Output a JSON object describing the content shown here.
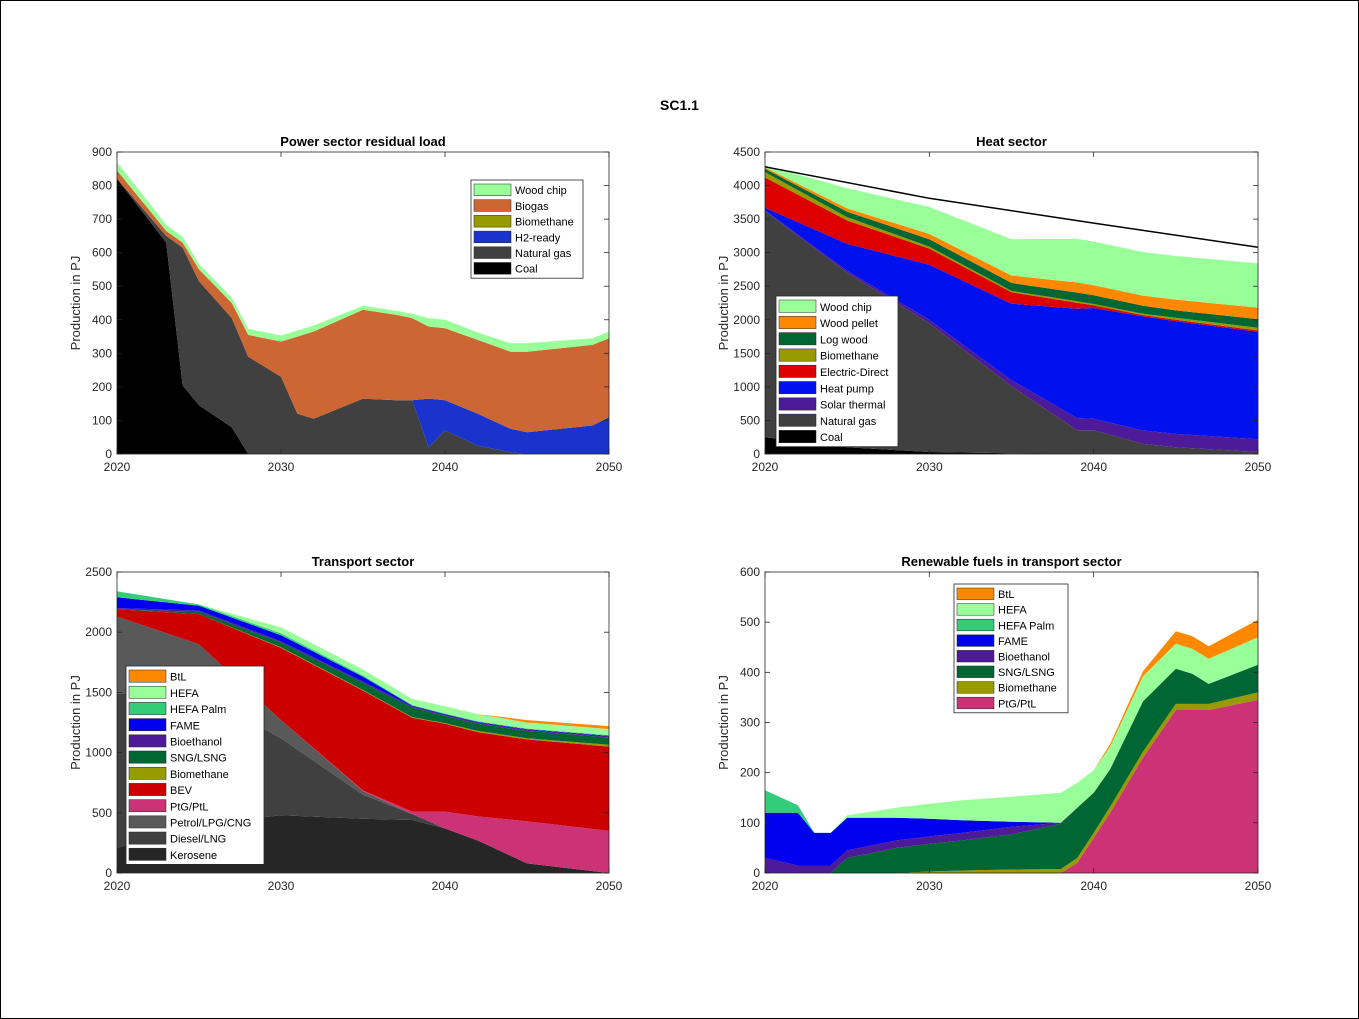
{
  "figure_title": "SC1.1",
  "chart_data": [
    {
      "type": "area",
      "title": "Power sector residual load",
      "xlabel": "",
      "ylabel": "Production in PJ",
      "xlim": [
        2020,
        2050
      ],
      "ylim": [
        0,
        900
      ],
      "xticks": [
        2020,
        2030,
        2040,
        2050
      ],
      "yticks": [
        0,
        100,
        200,
        300,
        400,
        500,
        600,
        700,
        800,
        900
      ],
      "grid": false,
      "legend_position": "top-right",
      "x": [
        2020,
        2023,
        2024,
        2025,
        2027,
        2028,
        2030,
        2031,
        2032,
        2035,
        2037,
        2038,
        2039,
        2040,
        2042,
        2044,
        2045,
        2049,
        2050
      ],
      "series": [
        {
          "name": "Coal",
          "color": "#000000",
          "values": [
            820,
            630,
            205,
            145,
            80,
            0,
            0,
            0,
            0,
            0,
            0,
            0,
            0,
            0,
            0,
            0,
            0,
            0,
            0
          ]
        },
        {
          "name": "Natural gas",
          "color": "#404040",
          "values": [
            0,
            20,
            410,
            370,
            325,
            290,
            230,
            120,
            105,
            165,
            160,
            160,
            20,
            70,
            25,
            5,
            0,
            0,
            0
          ]
        },
        {
          "name": "H2-ready",
          "color": "#1a33cc",
          "values": [
            0,
            0,
            0,
            0,
            0,
            0,
            0,
            0,
            0,
            0,
            0,
            0,
            145,
            90,
            95,
            70,
            65,
            85,
            110
          ]
        },
        {
          "name": "Biomethane",
          "color": "#999900",
          "values": [
            0,
            0,
            0,
            0,
            0,
            0,
            0,
            0,
            0,
            0,
            0,
            0,
            0,
            0,
            0,
            0,
            0,
            0,
            0
          ]
        },
        {
          "name": "Biogas",
          "color": "#cc6633",
          "values": [
            25,
            15,
            15,
            35,
            45,
            65,
            105,
            230,
            260,
            265,
            255,
            245,
            215,
            215,
            220,
            230,
            240,
            240,
            235
          ]
        },
        {
          "name": "Wood chip",
          "color": "#99ff99",
          "values": [
            25,
            18,
            17,
            16,
            16,
            18,
            18,
            18,
            18,
            12,
            12,
            13,
            25,
            25,
            22,
            25,
            25,
            20,
            20
          ]
        }
      ]
    },
    {
      "type": "area",
      "title": "Heat sector",
      "xlabel": "",
      "ylabel": "Production in PJ",
      "xlim": [
        2020,
        2050
      ],
      "ylim": [
        0,
        4500
      ],
      "xticks": [
        2020,
        2030,
        2040,
        2050
      ],
      "yticks": [
        0,
        500,
        1000,
        1500,
        2000,
        2500,
        3000,
        3500,
        4000,
        4500
      ],
      "grid": false,
      "legend_position": "bottom-left",
      "total_line": {
        "color": "#000000",
        "x": [
          2020,
          2030,
          2040,
          2050
        ],
        "values": [
          4280,
          3810,
          3440,
          3080
        ]
      },
      "x": [
        2020,
        2025,
        2030,
        2035,
        2039,
        2040,
        2043,
        2045,
        2050
      ],
      "series": [
        {
          "name": "Coal",
          "color": "#000000",
          "values": [
            250,
            100,
            30,
            10,
            5,
            5,
            0,
            0,
            0
          ]
        },
        {
          "name": "Natural gas",
          "color": "#404040",
          "values": [
            3370,
            2600,
            1920,
            1000,
            350,
            350,
            150,
            100,
            30
          ]
        },
        {
          "name": "Solar thermal",
          "color": "#4d1a99",
          "values": [
            10,
            30,
            50,
            90,
            180,
            170,
            200,
            200,
            190
          ]
        },
        {
          "name": "Heat pump",
          "color": "#0011ee",
          "values": [
            40,
            400,
            820,
            1140,
            1630,
            1650,
            1700,
            1680,
            1600
          ]
        },
        {
          "name": "Electric-Direct",
          "color": "#dd0000",
          "values": [
            450,
            350,
            240,
            170,
            90,
            40,
            20,
            20,
            20
          ]
        },
        {
          "name": "Biomethane",
          "color": "#999900",
          "values": [
            80,
            50,
            30,
            20,
            20,
            20,
            20,
            30,
            40
          ]
        },
        {
          "name": "Log wood",
          "color": "#006633",
          "values": [
            50,
            80,
            110,
            120,
            130,
            130,
            120,
            110,
            130
          ]
        },
        {
          "name": "Wood pellet",
          "color": "#ff8800",
          "values": [
            20,
            50,
            80,
            110,
            150,
            150,
            150,
            160,
            170
          ]
        },
        {
          "name": "Wood chip",
          "color": "#99ff99",
          "values": [
            30,
            300,
            400,
            540,
            650,
            650,
            650,
            650,
            660
          ]
        }
      ]
    },
    {
      "type": "area",
      "title": "Transport sector",
      "xlabel": "",
      "ylabel": "Production in PJ",
      "xlim": [
        2020,
        2050
      ],
      "ylim": [
        0,
        2500
      ],
      "xticks": [
        2020,
        2030,
        2040,
        2050
      ],
      "yticks": [
        0,
        500,
        1000,
        1500,
        2000,
        2500
      ],
      "grid": false,
      "legend_position": "bottom-left",
      "x": [
        2020,
        2025,
        2030,
        2035,
        2038,
        2040,
        2042,
        2045,
        2050
      ],
      "series": [
        {
          "name": "Kerosene",
          "color": "#262626",
          "values": [
            210,
            400,
            480,
            450,
            440,
            370,
            270,
            80,
            0
          ]
        },
        {
          "name": "Diesel/LNG",
          "color": "#404040",
          "values": [
            1280,
            1100,
            640,
            200,
            50,
            0,
            0,
            0,
            0
          ]
        },
        {
          "name": "Petrol/LPG/CNG",
          "color": "#595959",
          "values": [
            640,
            400,
            150,
            30,
            0,
            0,
            0,
            0,
            0
          ]
        },
        {
          "name": "PtG/PtL",
          "color": "#cc3377",
          "values": [
            0,
            0,
            0,
            5,
            20,
            140,
            200,
            350,
            350
          ]
        },
        {
          "name": "BEV",
          "color": "#cc0000",
          "values": [
            60,
            250,
            600,
            830,
            780,
            730,
            700,
            680,
            700
          ]
        },
        {
          "name": "Biomethane",
          "color": "#999900",
          "values": [
            0,
            0,
            5,
            5,
            5,
            5,
            10,
            10,
            15
          ]
        },
        {
          "name": "SNG/LSNG",
          "color": "#006633",
          "values": [
            0,
            20,
            40,
            60,
            80,
            60,
            60,
            60,
            60
          ]
        },
        {
          "name": "Bioethanol",
          "color": "#4d1a99",
          "values": [
            10,
            10,
            10,
            10,
            10,
            10,
            10,
            10,
            10
          ]
        },
        {
          "name": "FAME",
          "color": "#0000ee",
          "values": [
            90,
            40,
            50,
            40,
            5,
            5,
            5,
            5,
            5
          ]
        },
        {
          "name": "HEFA Palm",
          "color": "#33cc77",
          "values": [
            50,
            10,
            15,
            10,
            5,
            5,
            5,
            5,
            5
          ]
        },
        {
          "name": "HEFA",
          "color": "#99ff99",
          "values": [
            0,
            0,
            50,
            50,
            50,
            60,
            60,
            50,
            50
          ]
        },
        {
          "name": "BtL",
          "color": "#ff8800",
          "values": [
            0,
            0,
            0,
            0,
            0,
            0,
            0,
            20,
            25
          ]
        }
      ]
    },
    {
      "type": "area",
      "title": "Renewable fuels in transport sector",
      "xlabel": "",
      "ylabel": "Production in PJ",
      "xlim": [
        2020,
        2050
      ],
      "ylim": [
        0,
        600
      ],
      "xticks": [
        2020,
        2030,
        2040,
        2050
      ],
      "yticks": [
        0,
        100,
        200,
        300,
        400,
        500,
        600
      ],
      "grid": false,
      "legend_position": "top-center",
      "x": [
        2020,
        2022,
        2023,
        2024,
        2025,
        2028,
        2030,
        2032,
        2035,
        2038,
        2039,
        2040,
        2041,
        2043,
        2045,
        2046,
        2047,
        2050
      ],
      "series": [
        {
          "name": "PtG/PtL",
          "color": "#cc3377",
          "values": [
            0,
            0,
            0,
            0,
            0,
            0,
            0,
            0,
            0,
            0,
            20,
            70,
            120,
            230,
            325,
            325,
            325,
            345
          ]
        },
        {
          "name": "Biomethane",
          "color": "#999900",
          "values": [
            0,
            0,
            0,
            0,
            0,
            0,
            3,
            5,
            7,
            8,
            10,
            10,
            12,
            12,
            12,
            12,
            12,
            15
          ]
        },
        {
          "name": "SNG/LSNG",
          "color": "#006633",
          "values": [
            0,
            0,
            0,
            0,
            30,
            50,
            55,
            60,
            70,
            90,
            100,
            80,
            75,
            100,
            70,
            60,
            40,
            55
          ]
        },
        {
          "name": "Bioethanol",
          "color": "#4d1a99",
          "values": [
            30,
            15,
            15,
            15,
            15,
            15,
            15,
            15,
            15,
            2,
            0,
            0,
            0,
            0,
            0,
            0,
            0,
            0
          ]
        },
        {
          "name": "FAME",
          "color": "#0000ee",
          "values": [
            90,
            105,
            65,
            65,
            65,
            45,
            35,
            25,
            10,
            0,
            0,
            0,
            0,
            0,
            0,
            0,
            0,
            0
          ]
        },
        {
          "name": "HEFA Palm",
          "color": "#33cc77",
          "values": [
            45,
            15,
            0,
            0,
            0,
            0,
            0,
            0,
            0,
            0,
            0,
            0,
            0,
            0,
            0,
            0,
            0,
            0
          ]
        },
        {
          "name": "HEFA",
          "color": "#99ff99",
          "values": [
            0,
            0,
            0,
            0,
            5,
            20,
            30,
            40,
            50,
            60,
            50,
            45,
            45,
            50,
            50,
            50,
            50,
            55
          ]
        },
        {
          "name": "BtL",
          "color": "#ff8800",
          "values": [
            0,
            0,
            0,
            0,
            0,
            0,
            0,
            0,
            0,
            0,
            0,
            0,
            5,
            10,
            25,
            25,
            25,
            35
          ]
        }
      ]
    }
  ]
}
